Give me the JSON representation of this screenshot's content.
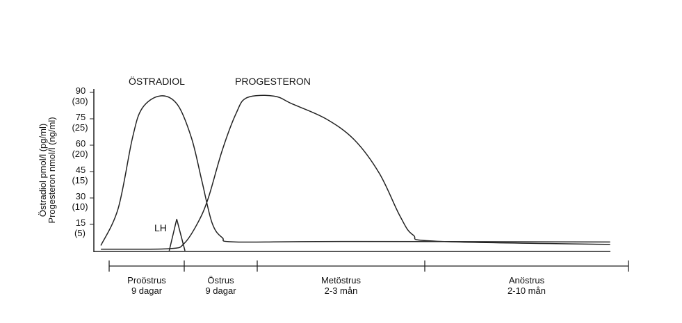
{
  "chart_data": {
    "type": "line",
    "title": "",
    "ylabel_lines": [
      "Östradiol pmol/l (pg/ml)",
      "Progesteron nmol/l (ng/ml)"
    ],
    "y_ticks": [
      {
        "value": 90,
        "label": "90",
        "sub": "(30)"
      },
      {
        "value": 75,
        "label": "75",
        "sub": "(25)"
      },
      {
        "value": 60,
        "label": "60",
        "sub": "(20)"
      },
      {
        "value": 45,
        "label": "45",
        "sub": "(15)"
      },
      {
        "value": 30,
        "label": "30",
        "sub": "(10)"
      },
      {
        "value": 15,
        "label": "15",
        "sub": "(5)"
      }
    ],
    "ylim": [
      0,
      90
    ],
    "x_unit": "phase position (0 = start of Proöstrus, each integer = next phase boundary)",
    "phases": [
      {
        "name": "Proöstrus",
        "duration": "9 dagar"
      },
      {
        "name": "Östrus",
        "duration": "9 dagar"
      },
      {
        "name": "Metöstrus",
        "duration": "2-3 mån"
      },
      {
        "name": "Anöstrus",
        "duration": "2-10 mån"
      }
    ],
    "series": [
      {
        "name": "ÖSTRADIOL",
        "unit": "pmol/l",
        "points": [
          [
            -0.11,
            3
          ],
          [
            0.12,
            24
          ],
          [
            0.31,
            64
          ],
          [
            0.44,
            81
          ],
          [
            0.68,
            88
          ],
          [
            0.91,
            83
          ],
          [
            1.1,
            64
          ],
          [
            1.24,
            40
          ],
          [
            1.38,
            16
          ],
          [
            1.52,
            7.5
          ],
          [
            1.71,
            5
          ],
          [
            2.5,
            5.3
          ],
          [
            3.91,
            5
          ]
        ]
      },
      {
        "name": "PROGESTERON",
        "unit": "nmol/l",
        "points": [
          [
            -0.11,
            0.3
          ],
          [
            0.8,
            0.4
          ],
          [
            1.0,
            1.4
          ],
          [
            1.19,
            5.4
          ],
          [
            1.33,
            10
          ],
          [
            1.52,
            19
          ],
          [
            1.71,
            26
          ],
          [
            1.86,
            29
          ],
          [
            2.1,
            29.3
          ],
          [
            2.21,
            27.8
          ],
          [
            2.41,
            25
          ],
          [
            2.58,
            21
          ],
          [
            2.73,
            14.6
          ],
          [
            2.85,
            6.7
          ],
          [
            2.93,
            3
          ],
          [
            3.06,
            1.8
          ],
          [
            3.91,
            1.2
          ]
        ]
      },
      {
        "name": "LH",
        "unit": "relative",
        "points": [
          [
            0.8,
            0
          ],
          [
            0.9,
            18
          ],
          [
            1.01,
            0
          ]
        ]
      }
    ],
    "grid": false,
    "legend": "labels on curves"
  }
}
